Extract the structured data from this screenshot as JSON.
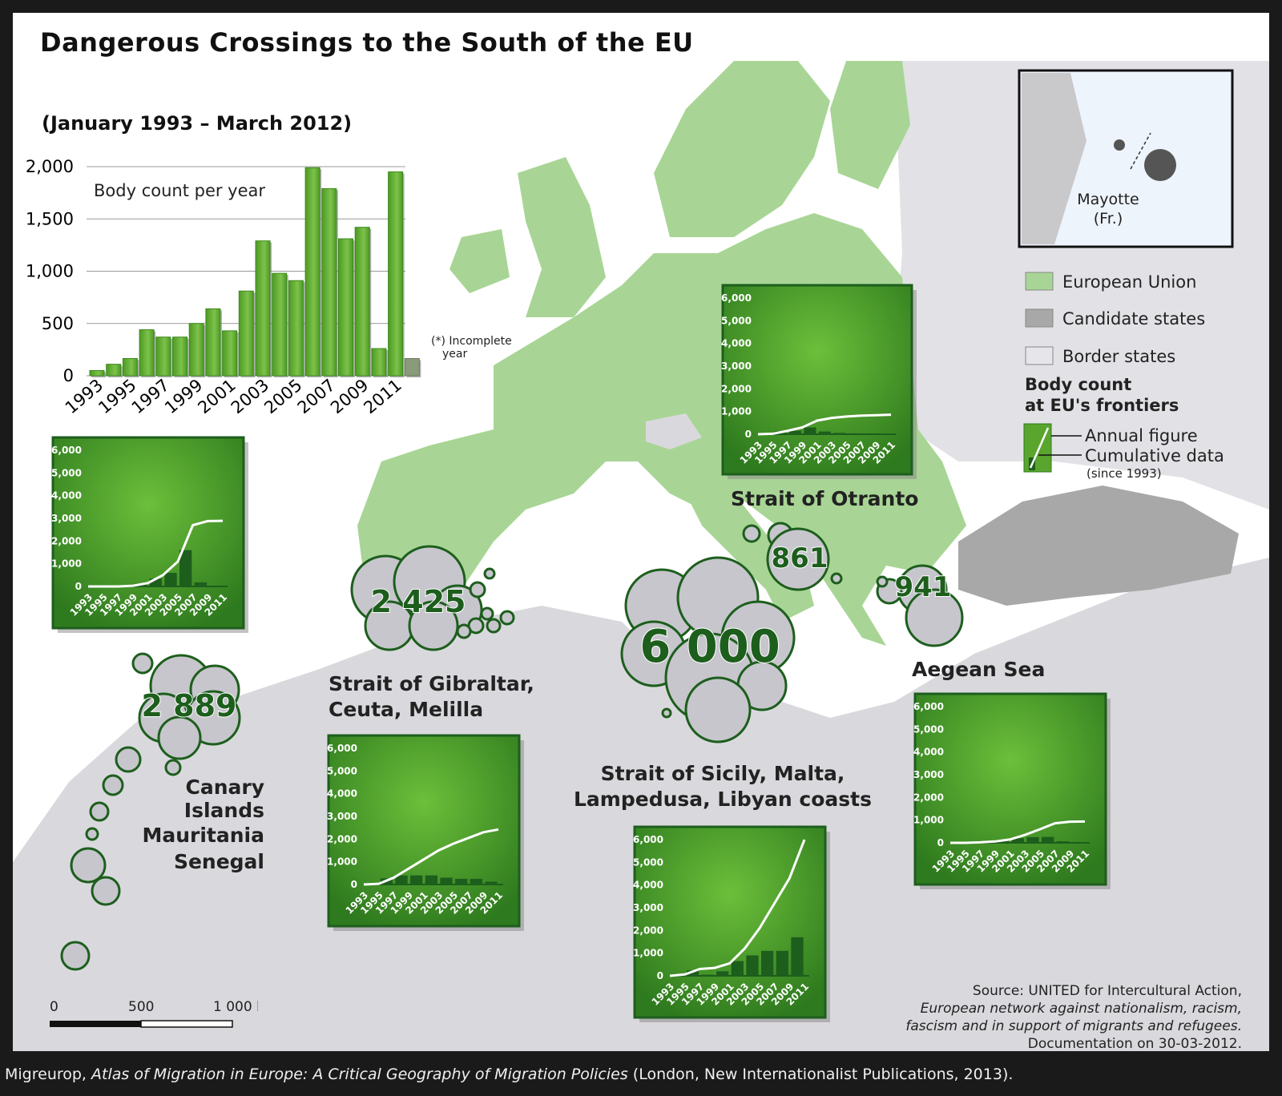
{
  "title": "Dangerous Crossings to the South of the EU",
  "period": "(January 1993 – March 2012)",
  "main_chart": {
    "title": "Body count per year",
    "y_ticks": [
      "2,000",
      "1,500",
      "1,000",
      "500",
      "0"
    ],
    "x_ticks": [
      "1993",
      "1995",
      "1997",
      "1999",
      "2001",
      "2003",
      "2005",
      "2007",
      "2009",
      "2011"
    ],
    "note_line1": "(*) Incomplete",
    "note_line2": "year"
  },
  "chart_data": [
    {
      "type": "bar",
      "title": "Body count per year",
      "categories": [
        "1993",
        "1994",
        "1995",
        "1996",
        "1997",
        "1998",
        "1999",
        "2000",
        "2001",
        "2002",
        "2003",
        "2004",
        "2005",
        "2006",
        "2007",
        "2008",
        "2009",
        "2010",
        "2011",
        "2012"
      ],
      "values": [
        50,
        110,
        165,
        440,
        370,
        370,
        500,
        640,
        430,
        810,
        1290,
        980,
        910,
        1990,
        1790,
        1310,
        1420,
        260,
        1950,
        165
      ],
      "ylim": [
        0,
        2000
      ],
      "color": "#5aa52e",
      "incomplete_last_bar_color": "#8a9a7a"
    },
    {
      "type": "line",
      "title": "Strait of Otranto",
      "total": "861",
      "x": [
        1993,
        1995,
        1997,
        1999,
        2001,
        2003,
        2005,
        2007,
        2009,
        2011
      ],
      "cumulative": [
        0,
        20,
        150,
        300,
        600,
        720,
        780,
        820,
        840,
        861
      ],
      "ylim": [
        0,
        6000
      ]
    },
    {
      "type": "line",
      "title": "Canary Islands Mauritania Senegal",
      "total": "2 889",
      "x": [
        1993,
        1995,
        1997,
        1999,
        2001,
        2003,
        2005,
        2007,
        2009,
        2011
      ],
      "cumulative": [
        0,
        0,
        0,
        30,
        150,
        500,
        1100,
        2700,
        2880,
        2889
      ],
      "ylim": [
        0,
        6000
      ]
    },
    {
      "type": "line",
      "title": "Strait of Gibraltar, Ceuta, Melilla",
      "total": "2 425",
      "x": [
        1993,
        1995,
        1997,
        1999,
        2001,
        2003,
        2005,
        2007,
        2009,
        2011
      ],
      "cumulative": [
        0,
        30,
        300,
        700,
        1100,
        1500,
        1800,
        2050,
        2300,
        2425
      ],
      "ylim": [
        0,
        6000
      ]
    },
    {
      "type": "line",
      "title": "Strait of Sicily, Malta, Lampedusa, Libyan coasts",
      "total": "6 000",
      "x": [
        1993,
        1995,
        1997,
        1999,
        2001,
        2003,
        2005,
        2007,
        2009,
        2011
      ],
      "cumulative": [
        0,
        60,
        300,
        350,
        550,
        1200,
        2100,
        3200,
        4300,
        6000
      ],
      "ylim": [
        0,
        6000
      ]
    },
    {
      "type": "line",
      "title": "Aegean Sea",
      "total": "941",
      "x": [
        1993,
        1995,
        1997,
        1999,
        2001,
        2003,
        2005,
        2007,
        2009,
        2011
      ],
      "cumulative": [
        0,
        0,
        20,
        60,
        150,
        350,
        600,
        860,
        930,
        941
      ],
      "ylim": [
        0,
        6000
      ]
    }
  ],
  "mini_y_ticks": [
    "6,000",
    "5,000",
    "4,000",
    "3,000",
    "2,000",
    "1,000",
    "0"
  ],
  "mini_x_ticks": [
    "1993",
    "1995",
    "1997",
    "1999",
    "2001",
    "2003",
    "2005",
    "2007",
    "2009",
    "2011"
  ],
  "regions": {
    "otranto": "Strait of Otranto",
    "canary_1": "Canary",
    "canary_2": "Islands",
    "canary_3": "Mauritania",
    "canary_4": "Senegal",
    "gibraltar_1": "Strait of Gibraltar,",
    "gibraltar_2": "Ceuta, Melilla",
    "sicily_1": "Strait of Sicily, Malta,",
    "sicily_2": "Lampedusa, Libyan coasts",
    "aegean": "Aegean Sea"
  },
  "counts": {
    "otranto": "861",
    "canary": "2 889",
    "gibraltar": "2 425",
    "sicily": "6 000",
    "aegean": "941"
  },
  "inset": {
    "label_1": "Mayotte",
    "label_2": "(Fr.)"
  },
  "legend": {
    "eu": "European Union",
    "candidate": "Candidate states",
    "border": "Border states",
    "body_title_1": "Body count",
    "body_title_2": "at EU's frontiers",
    "annual": "Annual figure",
    "cumulative": "Cumulative data",
    "since": "(since 1993)"
  },
  "colors": {
    "eu": "#a8d595",
    "candidate": "#a8a8a8",
    "border": "#d9d9dd",
    "sea": "#ffffff",
    "chart_green": "#5aa52e",
    "dark_green": "#1d5e1d"
  },
  "scale": {
    "s0": "0",
    "s1": "500",
    "s2": "1 000 km"
  },
  "source": {
    "line1": "Source: UNITED for Intercultural Action,",
    "line2": "European network against nationalism, racism,",
    "line3": "fascism and in support of migrants and refugees.",
    "line4": "Documentation on 30-03-2012."
  },
  "footer": {
    "prefix": "Migreurop, ",
    "italic": "Atlas of Migration in Europe: A Critical Geography of Migration Policies",
    "suffix": " (London, New Internationalist Publications, 2013)."
  }
}
